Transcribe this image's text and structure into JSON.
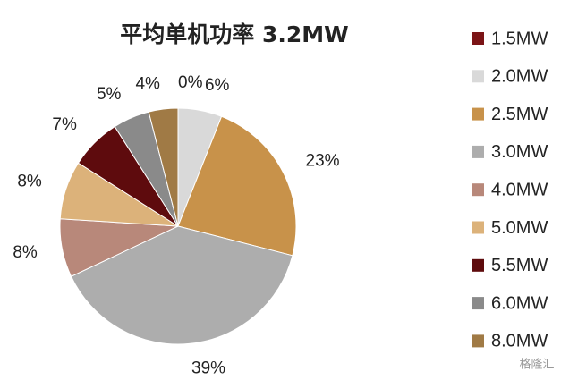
{
  "chart_data": {
    "type": "pie",
    "title": "平均单机功率 3.2MW",
    "categories": [
      "1.5MW",
      "2.0MW",
      "2.5MW",
      "3.0MW",
      "4.0MW",
      "5.0MW",
      "5.5MW",
      "6.0MW",
      "8.0MW"
    ],
    "values": [
      0,
      6,
      23,
      39,
      8,
      8,
      7,
      5,
      4
    ],
    "value_labels": [
      "0%",
      "6%",
      "23%",
      "39%",
      "8%",
      "8%",
      "7%",
      "5%",
      "4%"
    ],
    "colors": [
      "#7b1416",
      "#d9d9d9",
      "#c8924a",
      "#adadad",
      "#b8887a",
      "#dcb27a",
      "#5e0b0d",
      "#8a8a8a",
      "#a07a45"
    ],
    "legend": "right"
  },
  "watermark": "格隆汇"
}
